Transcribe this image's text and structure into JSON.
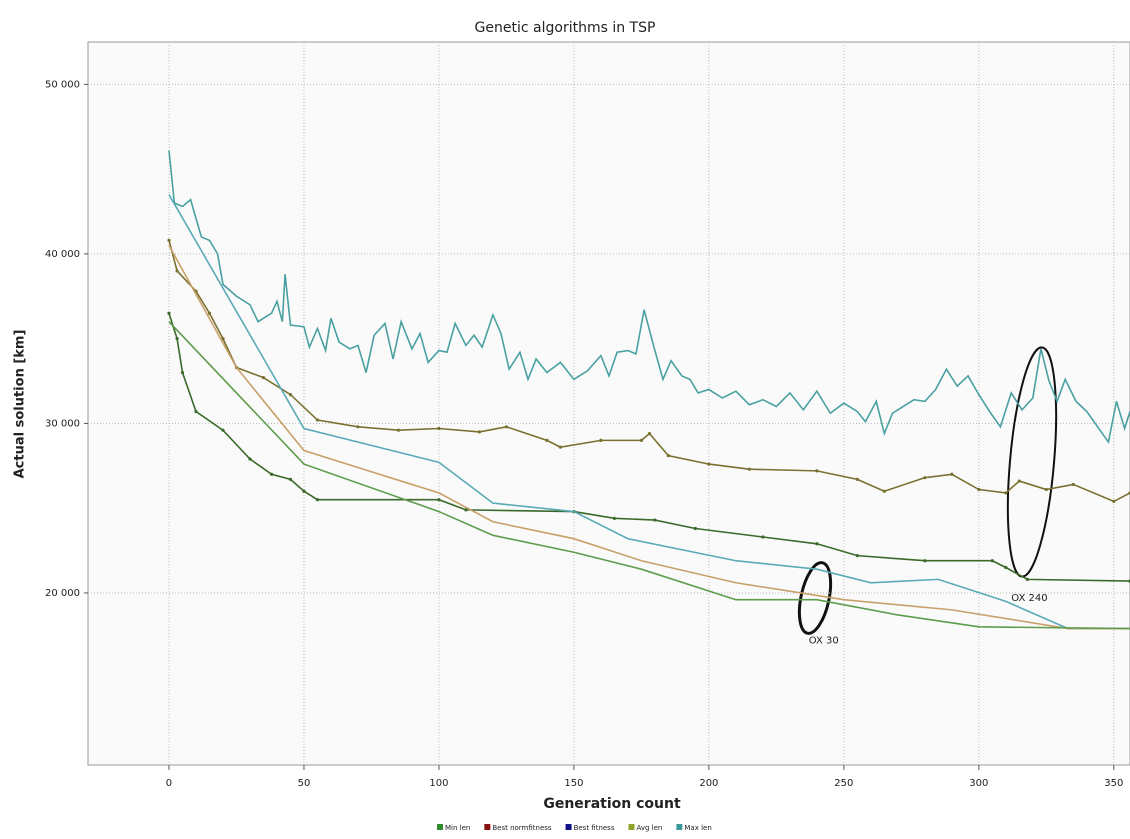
{
  "chart_data": {
    "type": "line",
    "title": "Genetic algorithms in TSP",
    "xlabel": "Generation count",
    "ylabel": "Actual solution [km]",
    "xlim": [
      -30,
      356
    ],
    "xticks": [
      0,
      50,
      100,
      150,
      200,
      250,
      300,
      350
    ],
    "ylim": [
      9850,
      52500
    ],
    "yticks": [
      {
        "value": 20000,
        "label": "20 000"
      },
      {
        "value": 30000,
        "label": "30 000"
      },
      {
        "value": 40000,
        "label": "40 000"
      },
      {
        "value": 50000,
        "label": "50 000"
      }
    ],
    "grid": true,
    "legend": [
      {
        "name": "Min len",
        "color": "#2e8b2e"
      },
      {
        "name": "Best normfitness",
        "color": "#8b1010"
      },
      {
        "name": "Best fitness",
        "color": "#10108b"
      },
      {
        "name": "Avg len",
        "color": "#8fa32a"
      },
      {
        "name": "Max len",
        "color": "#3a9a9a"
      }
    ],
    "series": [
      {
        "color": "#4aa0a0",
        "markers": false,
        "x": [
          0,
          2,
          5,
          8,
          12,
          15,
          18,
          20,
          25,
          30,
          33,
          38,
          40,
          42,
          43,
          45,
          50,
          52,
          55,
          58,
          60,
          63,
          67,
          70,
          73,
          76,
          80,
          83,
          86,
          90,
          93,
          96,
          100,
          103,
          106,
          110,
          113,
          116,
          120,
          123,
          126,
          130,
          133,
          136,
          140,
          145,
          150,
          155,
          160,
          163,
          166,
          170,
          173,
          176,
          180,
          183,
          186,
          190,
          193,
          196,
          200,
          205,
          210,
          215,
          220,
          225,
          230,
          235,
          240,
          245,
          250,
          255,
          258,
          262,
          265,
          268,
          272,
          276,
          280,
          284,
          288,
          292,
          296,
          300,
          304,
          308,
          312,
          316,
          320,
          323,
          326,
          329,
          332,
          336,
          340,
          344,
          348,
          351,
          354,
          356
        ],
        "values": [
          46100,
          43000,
          42800,
          43200,
          41000,
          40800,
          40000,
          38200,
          37500,
          37000,
          36000,
          36500,
          37200,
          36000,
          38800,
          35800,
          35700,
          34500,
          35600,
          34300,
          36200,
          34800,
          34400,
          34600,
          33000,
          35200,
          35900,
          33800,
          36000,
          34400,
          35300,
          33600,
          34300,
          34200,
          35900,
          34600,
          35200,
          34500,
          36400,
          35300,
          33200,
          34200,
          32600,
          33800,
          33000,
          33600,
          32600,
          33100,
          34000,
          32800,
          34200,
          34300,
          34100,
          36700,
          34300,
          32600,
          33700,
          32800,
          32600,
          31800,
          32000,
          31500,
          31900,
          31100,
          31400,
          31000,
          31800,
          30800,
          31900,
          30600,
          31200,
          30700,
          30100,
          31300,
          29400,
          30600,
          31000,
          31400,
          31300,
          32000,
          33200,
          32200,
          32800,
          31700,
          30700,
          29800,
          31800,
          30800,
          31500,
          34400,
          32500,
          31300,
          32600,
          31300,
          30700,
          29800,
          28900,
          31300,
          29700,
          30700
        ]
      },
      {
        "color": "#7a7030",
        "markers": true,
        "x": [
          0,
          3,
          10,
          15,
          20,
          25,
          35,
          45,
          55,
          70,
          85,
          100,
          115,
          125,
          140,
          145,
          160,
          175,
          178,
          185,
          200,
          215,
          240,
          255,
          265,
          280,
          290,
          300,
          310,
          315,
          325,
          335,
          350,
          356
        ],
        "values": [
          40800,
          39000,
          37800,
          36500,
          35000,
          33300,
          32700,
          31700,
          30200,
          29800,
          29600,
          29700,
          29500,
          29800,
          29000,
          28600,
          29000,
          29000,
          29400,
          28100,
          27600,
          27300,
          27200,
          26700,
          26000,
          26800,
          27000,
          26100,
          25900,
          26600,
          26100,
          26400,
          25400,
          25900
        ]
      },
      {
        "color": "#3a6a2a",
        "markers": true,
        "x": [
          0,
          3,
          5,
          10,
          20,
          30,
          38,
          45,
          50,
          55,
          100,
          110,
          150,
          165,
          180,
          195,
          220,
          240,
          255,
          280,
          305,
          310,
          318,
          356
        ],
        "values": [
          36500,
          35000,
          33000,
          30700,
          29600,
          27900,
          27000,
          26700,
          26000,
          25500,
          25500,
          24900,
          24800,
          24400,
          24300,
          23800,
          23300,
          22900,
          22200,
          21900,
          21900,
          21500,
          20800,
          20700
        ]
      },
      {
        "color": "#5aaab8",
        "markers": false,
        "x": [
          0,
          50,
          100,
          120,
          150,
          170,
          210,
          240,
          260,
          285,
          310,
          333,
          356
        ],
        "values": [
          43500,
          29700,
          27700,
          25300,
          24800,
          23200,
          21900,
          21400,
          20600,
          20800,
          19500,
          17900,
          17900
        ]
      },
      {
        "color": "#c8a06a",
        "markers": false,
        "x": [
          0,
          25,
          50,
          100,
          120,
          150,
          175,
          210,
          250,
          290,
          333,
          356
        ],
        "values": [
          40500,
          33300,
          28400,
          25900,
          24200,
          23200,
          21900,
          20600,
          19600,
          19000,
          17900,
          17900
        ]
      },
      {
        "color": "#5c9c4c",
        "markers": false,
        "x": [
          0,
          50,
          100,
          120,
          150,
          175,
          210,
          240,
          270,
          300,
          356
        ],
        "values": [
          36000,
          27600,
          24800,
          23400,
          22400,
          21400,
          19600,
          19600,
          18700,
          18000,
          17900
        ]
      }
    ],
    "annotations": [
      {
        "text": "OX 30",
        "x": 237,
        "y": 17200
      },
      {
        "text": "OX 240",
        "x": 312,
        "y": 19700
      }
    ]
  }
}
